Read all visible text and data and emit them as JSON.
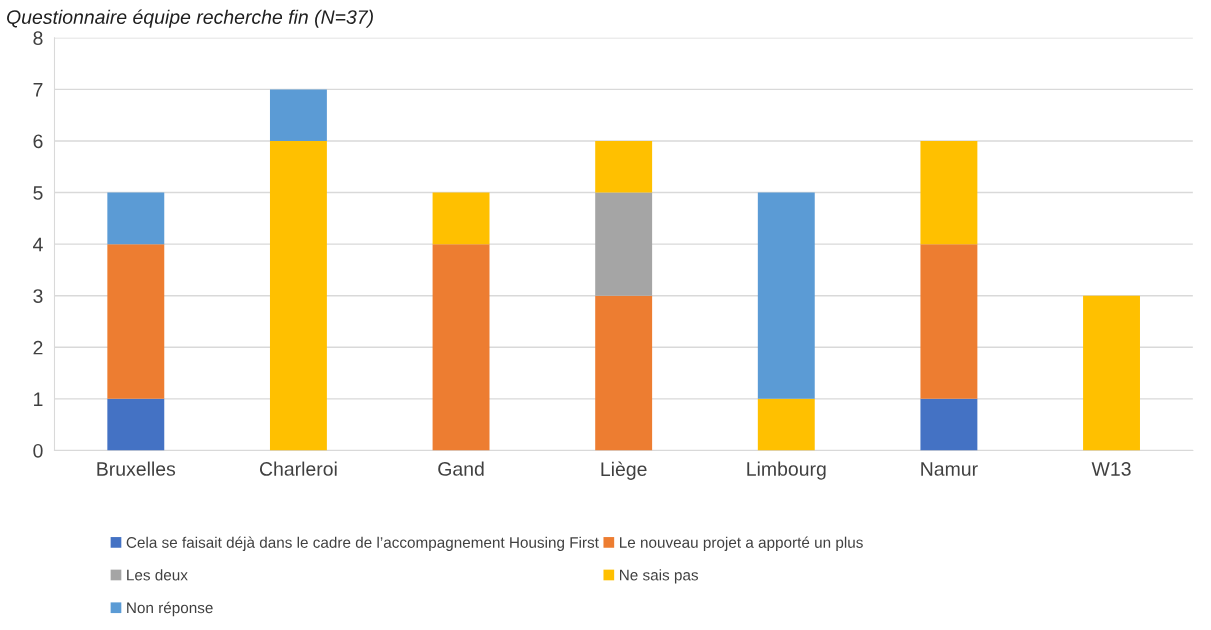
{
  "chart_data": {
    "type": "bar",
    "title": "Questionnaire équipe recherche fin (N=37)",
    "stacked": true,
    "categories": [
      "Bruxelles",
      "Charleroi",
      "Gand",
      "Liège",
      "Limbourg",
      "Namur",
      "W13"
    ],
    "series": [
      {
        "name": "Cela se faisait déjà dans le cadre de l’accompagnement Housing First",
        "color": "#4472c4",
        "values": [
          1,
          0,
          0,
          0,
          0,
          1,
          0
        ]
      },
      {
        "name": "Le nouveau projet a apporté un plus",
        "color": "#ed7d31",
        "values": [
          3,
          0,
          4,
          3,
          0,
          3,
          0
        ]
      },
      {
        "name": "Les deux",
        "color": "#a5a5a5",
        "values": [
          0,
          0,
          0,
          2,
          0,
          0,
          0
        ]
      },
      {
        "name": "Ne sais pas",
        "color": "#ffc000",
        "values": [
          0,
          6,
          1,
          1,
          1,
          2,
          3
        ]
      },
      {
        "name": "Non réponse",
        "color": "#5b9bd5",
        "values": [
          1,
          1,
          0,
          0,
          4,
          0,
          0
        ]
      }
    ],
    "ylim": [
      0,
      8
    ],
    "yticks": [
      0,
      1,
      2,
      3,
      4,
      5,
      6,
      7,
      8
    ],
    "grid": "y",
    "legend": "bottom"
  }
}
